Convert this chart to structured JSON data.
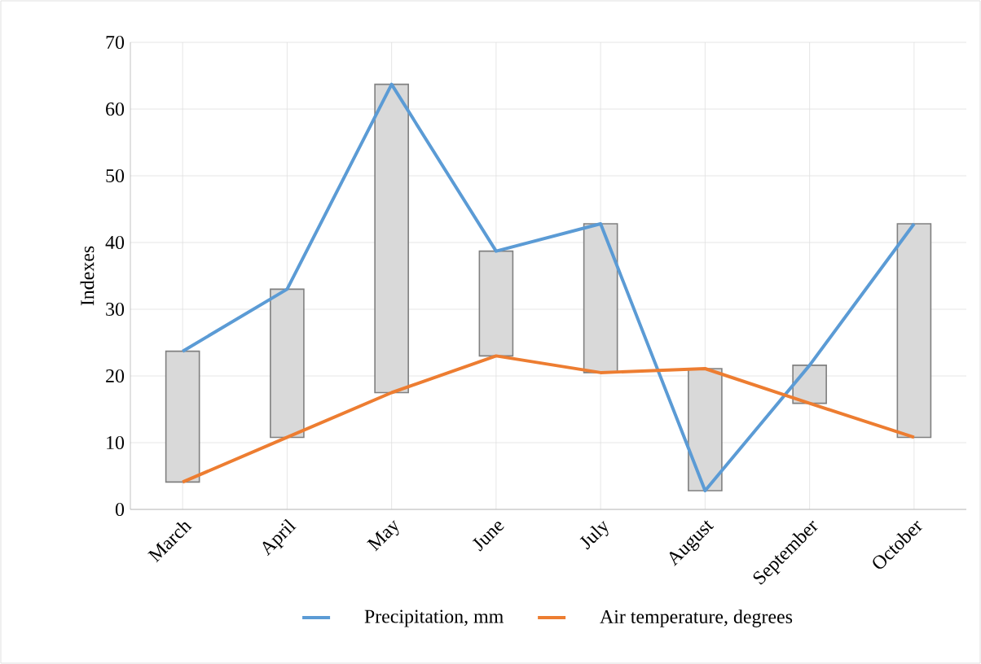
{
  "chart_data": {
    "type": "line",
    "ylabel": "Indexes",
    "categories": [
      "March",
      "April",
      "May",
      "June",
      "July",
      "August",
      "September",
      "October"
    ],
    "series": [
      {
        "type": "bar",
        "color": "#d9d9d9",
        "base": [
          4.1,
          10.8,
          17.5,
          23,
          20.5,
          2.8,
          15.9,
          10.8
        ],
        "values": [
          19.6,
          22.2,
          46.2,
          15.7,
          22.3,
          18.3,
          5.7,
          32.0
        ]
      },
      {
        "name": "Precipitation, mm",
        "color": "#5b9bd5",
        "values": [
          23.7,
          33,
          63.7,
          38.7,
          42.8,
          2.8,
          21.6,
          42.8
        ]
      },
      {
        "name": "Air temperature, degrees",
        "color": "#ed7d31",
        "values": [
          4.1,
          10.8,
          17.5,
          23,
          20.5,
          21.1,
          15.9,
          10.8
        ]
      }
    ],
    "ylim": [
      0,
      70
    ],
    "yticks": [
      0,
      10,
      20,
      30,
      40,
      50,
      60,
      70
    ],
    "grid": true,
    "legend": "bottom",
    "marker": "none",
    "line_style": "solid"
  }
}
